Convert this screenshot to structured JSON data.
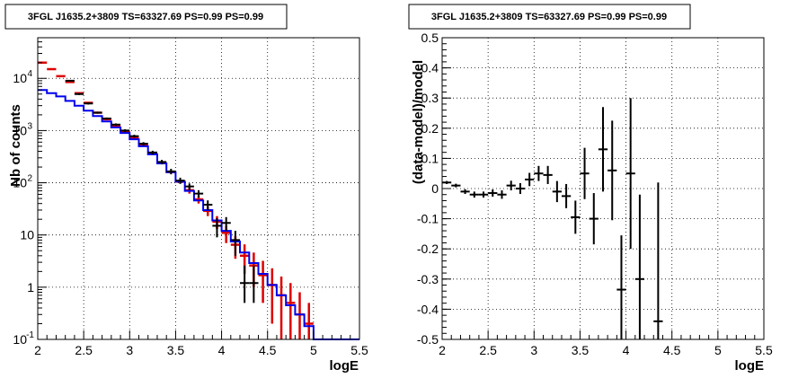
{
  "chart_data": [
    {
      "type": "line",
      "title": "3FGL J1635.2+3809 TS=63327.69 PS=0.99 PS=0.99",
      "xlabel": "logE",
      "ylabel": "Nb of counts",
      "xlim": [
        2,
        5.5
      ],
      "ylim": [
        0.1,
        60000
      ],
      "y_scale": "log",
      "grid": true,
      "x_ticks": [
        "2",
        "2.5",
        "3",
        "3.5",
        "4",
        "4.5",
        "5",
        "5.5"
      ],
      "y_ticks": [
        {
          "value": 0.1,
          "label": "10",
          "exp": "-1"
        },
        {
          "value": 1,
          "label": "1",
          "exp": ""
        },
        {
          "value": 10,
          "label": "10",
          "exp": ""
        },
        {
          "value": 100,
          "label": "10",
          "exp": "2"
        },
        {
          "value": 1000,
          "label": "10",
          "exp": "3"
        },
        {
          "value": 10000,
          "label": "10",
          "exp": "4"
        }
      ],
      "bin_width": 0.1,
      "x": [
        2.05,
        2.15,
        2.25,
        2.35,
        2.45,
        2.55,
        2.65,
        2.75,
        2.85,
        2.95,
        3.05,
        3.15,
        3.25,
        3.35,
        3.45,
        3.55,
        3.65,
        3.75,
        3.85,
        3.95,
        4.05,
        4.15,
        4.25,
        4.35,
        4.45,
        4.55,
        4.65,
        4.75,
        4.85,
        4.95,
        5.05,
        5.15,
        5.25,
        5.35,
        5.45
      ],
      "series": [
        {
          "name": "data",
          "color": "#000000",
          "style": "errorbar",
          "values": [
            null,
            null,
            null,
            9000,
            5000,
            3300,
            2200,
            1700,
            1300,
            1000,
            780,
            560,
            380,
            250,
            165,
            110,
            85,
            62,
            38,
            15,
            17,
            8,
            1.2,
            1.2,
            null,
            null,
            null,
            null,
            null,
            null,
            null,
            null,
            null,
            null,
            null
          ],
          "err_low": [
            null,
            null,
            null,
            300,
            200,
            150,
            100,
            80,
            70,
            60,
            50,
            40,
            30,
            25,
            20,
            15,
            12,
            10,
            8,
            6,
            5,
            4,
            0.7,
            0.7,
            null,
            null,
            null,
            null,
            null,
            null,
            null,
            null,
            null,
            null,
            null
          ],
          "err_high": [
            null,
            null,
            null,
            300,
            200,
            150,
            100,
            80,
            70,
            60,
            50,
            40,
            30,
            25,
            20,
            15,
            12,
            10,
            8,
            6,
            5,
            4,
            1.4,
            1.4,
            null,
            null,
            null,
            null,
            null,
            null,
            null,
            null,
            null,
            null,
            null
          ]
        },
        {
          "name": "model (red)",
          "color": "#dd0000",
          "style": "errorbar",
          "values": [
            20000,
            15000,
            11000,
            8500,
            5200,
            3400,
            2200,
            1650,
            1250,
            950,
            720,
            520,
            360,
            240,
            160,
            105,
            72,
            48,
            29,
            18,
            11,
            6.5,
            4,
            2.6,
            1.7,
            1.1,
            0.7,
            0.5,
            0.3,
            0.2,
            null,
            null,
            null,
            null,
            null
          ],
          "err_low": [
            0,
            0,
            0,
            0,
            0,
            0,
            0,
            0,
            0,
            0,
            0,
            0,
            0,
            0,
            0,
            0,
            10,
            8,
            6,
            5,
            4,
            3,
            2.2,
            1.6,
            1.2,
            0.9,
            0.6,
            0.45,
            0.25,
            0.15,
            null,
            null,
            null,
            null,
            null
          ],
          "err_high": [
            0,
            0,
            0,
            0,
            0,
            0,
            0,
            0,
            0,
            0,
            0,
            0,
            0,
            0,
            0,
            0,
            10,
            8,
            6,
            5,
            4,
            3,
            2.6,
            2,
            1.5,
            1.2,
            0.9,
            0.7,
            0.5,
            0.3,
            null,
            null,
            null,
            null,
            null
          ]
        },
        {
          "name": "model (blue)",
          "color": "#0000ee",
          "style": "step",
          "values": [
            6000,
            5200,
            4500,
            3700,
            3000,
            2400,
            1900,
            1500,
            1150,
            900,
            680,
            500,
            350,
            235,
            160,
            105,
            70,
            46,
            30,
            19,
            12,
            7.5,
            4.6,
            2.9,
            1.8,
            1.1,
            0.7,
            0.45,
            0.3,
            0.18,
            0.1,
            0.1,
            0.1,
            0.1,
            0.1
          ]
        }
      ]
    },
    {
      "type": "scatter",
      "title": "3FGL J1635.2+3809 TS=63327.69 PS=0.99 PS=0.99",
      "xlabel": "logE",
      "ylabel": "(data-model)/model",
      "xlim": [
        2,
        5.5
      ],
      "ylim": [
        -0.5,
        0.5
      ],
      "grid": true,
      "x_ticks": [
        "2",
        "2.5",
        "3",
        "3.5",
        "4",
        "4.5",
        "5",
        "5.5"
      ],
      "y_ticks": [
        "-0.5",
        "-0.4",
        "-0.3",
        "-0.2",
        "-0.1",
        "0",
        "0.1",
        "0.2",
        "0.3",
        "0.4",
        "0.5"
      ],
      "bin_width": 0.1,
      "series": [
        {
          "name": "residuals",
          "color": "#000000",
          "x": [
            2.05,
            2.15,
            2.25,
            2.35,
            2.45,
            2.55,
            2.65,
            2.75,
            2.85,
            2.95,
            3.05,
            3.15,
            3.25,
            3.35,
            3.45,
            3.55,
            3.65,
            3.75,
            3.85,
            3.95,
            4.05,
            4.15,
            4.35
          ],
          "y": [
            0.02,
            0.01,
            -0.01,
            -0.02,
            -0.02,
            -0.015,
            -0.02,
            0.01,
            0.0,
            0.03,
            0.05,
            0.045,
            -0.01,
            -0.025,
            -0.095,
            0.05,
            -0.1,
            0.13,
            0.06,
            -0.335,
            0.05,
            -0.3,
            -0.44
          ],
          "err": [
            0.005,
            0.006,
            0.008,
            0.01,
            0.01,
            0.012,
            0.014,
            0.016,
            0.018,
            0.022,
            0.025,
            0.03,
            0.035,
            0.04,
            0.055,
            0.085,
            0.085,
            0.14,
            0.165,
            0.18,
            0.25,
            0.28,
            0.46
          ]
        }
      ]
    }
  ]
}
